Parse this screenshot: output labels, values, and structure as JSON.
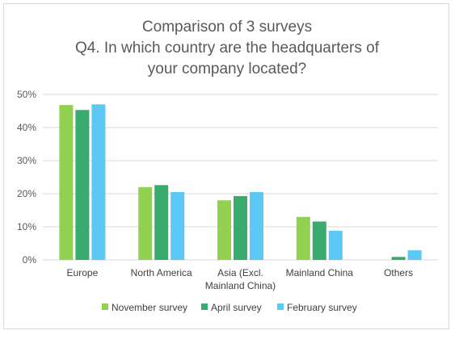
{
  "chart_data": {
    "type": "bar",
    "title_lines": [
      "Comparison of 3 surveys",
      "Q4. In which country are the headquarters of",
      "your company located?"
    ],
    "categories": [
      [
        "Europe"
      ],
      [
        "North America"
      ],
      [
        "Asia (Excl.",
        "Mainland China)"
      ],
      [
        "Mainland China"
      ],
      [
        "Others"
      ]
    ],
    "series": [
      {
        "name": "November survey",
        "color": "#92d050",
        "values": [
          46.8,
          22.0,
          18.0,
          13.0,
          0.0
        ]
      },
      {
        "name": "April survey",
        "color": "#3aab6e",
        "values": [
          45.3,
          22.6,
          19.3,
          11.6,
          0.9
        ]
      },
      {
        "name": "February survey",
        "color": "#5bc8f5",
        "values": [
          47.0,
          20.5,
          20.5,
          8.8,
          2.9
        ]
      }
    ],
    "yticks": [
      "0%",
      "10%",
      "20%",
      "30%",
      "40%",
      "50%"
    ],
    "ylim": [
      0,
      50
    ],
    "ylabel": "",
    "xlabel": "",
    "grid": true,
    "gridColor": "#d9d9d9",
    "legend_position": "bottom"
  }
}
